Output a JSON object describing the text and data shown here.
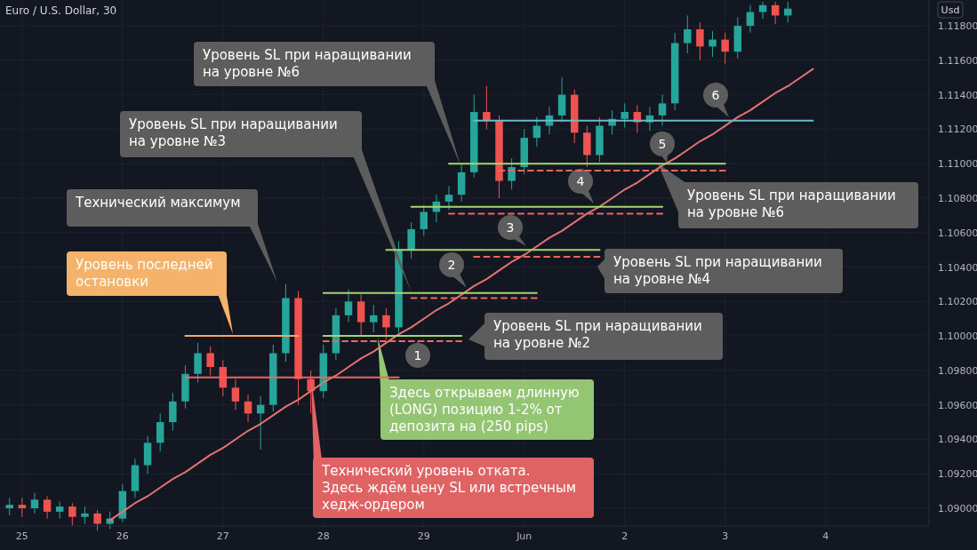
{
  "chart_data": {
    "type": "candlestick",
    "title": "Euro / U.S. Dollar, 30",
    "ylabel": "Usd",
    "categories": [
      null,
      "25",
      null,
      null,
      null,
      null,
      null,
      null,
      null,
      "26",
      null,
      null,
      null,
      null,
      null,
      null,
      null,
      "27",
      null,
      null,
      null,
      null,
      null,
      null,
      null,
      "28",
      null,
      null,
      null,
      null,
      null,
      null,
      null,
      "29",
      null,
      null,
      null,
      null,
      null,
      null,
      null,
      "Jun",
      null,
      null,
      null,
      null,
      null,
      null,
      null,
      "2",
      null,
      null,
      null,
      null,
      null,
      null,
      null,
      "3",
      null,
      null,
      null,
      null,
      null,
      null,
      null,
      "4",
      null,
      null,
      null,
      null,
      null,
      null,
      null,
      null
    ],
    "ohlc": [
      [
        1.09,
        1.0906,
        1.0896,
        1.0902
      ],
      [
        1.0902,
        1.0906,
        1.0895,
        1.09
      ],
      [
        1.09,
        1.0909,
        1.0897,
        1.0905
      ],
      [
        1.0905,
        1.0907,
        1.0894,
        1.0898
      ],
      [
        1.0898,
        1.0904,
        1.0894,
        1.0901
      ],
      [
        1.0901,
        1.0903,
        1.089,
        1.0895
      ],
      [
        1.0895,
        1.0901,
        1.0891,
        1.0897
      ],
      [
        1.0897,
        1.0899,
        1.0887,
        1.0891
      ],
      [
        1.0891,
        1.0898,
        1.0888,
        1.0894
      ],
      [
        1.0894,
        1.0914,
        1.0892,
        1.091
      ],
      [
        1.091,
        1.0929,
        1.0906,
        1.0925
      ],
      [
        1.0925,
        1.0942,
        1.092,
        1.0938
      ],
      [
        1.0938,
        1.0955,
        1.0933,
        1.095
      ],
      [
        1.095,
        1.0967,
        1.0945,
        1.0962
      ],
      [
        1.0962,
        1.0983,
        1.0958,
        1.0978
      ],
      [
        1.0978,
        1.0996,
        1.0973,
        1.099
      ],
      [
        1.099,
        1.0994,
        1.0977,
        1.0982
      ],
      [
        1.0982,
        1.0986,
        1.0965,
        1.097
      ],
      [
        1.097,
        1.0975,
        1.0957,
        1.0962
      ],
      [
        1.0962,
        1.0966,
        1.095,
        1.0955
      ],
      [
        1.0955,
        1.0965,
        1.0934,
        1.096
      ],
      [
        1.096,
        1.0995,
        1.0956,
        1.099
      ],
      [
        1.099,
        1.103,
        1.0985,
        1.1022
      ],
      [
        1.1022,
        1.1026,
        1.096,
        1.0975
      ],
      [
        1.0975,
        1.098,
        1.0955,
        1.0968
      ],
      [
        1.0968,
        1.0995,
        1.0964,
        1.099
      ],
      [
        1.099,
        1.1016,
        1.0986,
        1.1012
      ],
      [
        1.1012,
        1.1027,
        1.1008,
        1.102
      ],
      [
        1.102,
        1.1024,
        1.1,
        1.1008
      ],
      [
        1.1008,
        1.1018,
        1.1002,
        1.1012
      ],
      [
        1.1012,
        1.1016,
        1.0998,
        1.1005
      ],
      [
        1.1005,
        1.1055,
        1.1002,
        1.105
      ],
      [
        1.105,
        1.1066,
        1.1045,
        1.1062
      ],
      [
        1.1062,
        1.1076,
        1.1058,
        1.1072
      ],
      [
        1.1072,
        1.1082,
        1.1066,
        1.1078
      ],
      [
        1.1078,
        1.1087,
        1.1073,
        1.1082
      ],
      [
        1.1082,
        1.11,
        1.1078,
        1.1095
      ],
      [
        1.1095,
        1.114,
        1.1092,
        1.113
      ],
      [
        1.113,
        1.1145,
        1.112,
        1.1125
      ],
      [
        1.1125,
        1.1128,
        1.108,
        1.109
      ],
      [
        1.109,
        1.1103,
        1.1085,
        1.1098
      ],
      [
        1.1098,
        1.112,
        1.1094,
        1.1115
      ],
      [
        1.1115,
        1.1127,
        1.111,
        1.1122
      ],
      [
        1.1122,
        1.1133,
        1.1117,
        1.1128
      ],
      [
        1.1128,
        1.115,
        1.1124,
        1.114
      ],
      [
        1.114,
        1.1143,
        1.1112,
        1.1118
      ],
      [
        1.1118,
        1.1122,
        1.1098,
        1.1105
      ],
      [
        1.1105,
        1.1127,
        1.1101,
        1.1122
      ],
      [
        1.1122,
        1.1131,
        1.1117,
        1.1126
      ],
      [
        1.1126,
        1.1135,
        1.1121,
        1.113
      ],
      [
        1.113,
        1.1134,
        1.1118,
        1.1124
      ],
      [
        1.1124,
        1.1133,
        1.1119,
        1.1128
      ],
      [
        1.1128,
        1.114,
        1.1122,
        1.1135
      ],
      [
        1.1135,
        1.1176,
        1.1131,
        1.117
      ],
      [
        1.117,
        1.1186,
        1.1164,
        1.1178
      ],
      [
        1.1178,
        1.1182,
        1.116,
        1.1168
      ],
      [
        1.1168,
        1.1177,
        1.1162,
        1.1172
      ],
      [
        1.1172,
        1.1176,
        1.1158,
        1.1165
      ],
      [
        1.1165,
        1.1185,
        1.1161,
        1.118
      ],
      [
        1.118,
        1.1192,
        1.1176,
        1.1188
      ],
      [
        1.1188,
        1.1194,
        1.1184,
        1.1192
      ],
      [
        1.1192,
        1.1194,
        1.1181,
        1.1186
      ],
      [
        1.1186,
        1.1194,
        1.1182,
        1.119
      ],
      null,
      null,
      null,
      null,
      null,
      null,
      null,
      null,
      null,
      null,
      null
    ],
    "series": [
      {
        "type": "line",
        "color": "#e57373",
        "values": [
          null,
          null,
          null,
          null,
          null,
          null,
          null,
          null,
          1.0893,
          1.0898,
          1.0903,
          1.0907,
          1.0912,
          1.0917,
          1.0921,
          1.0926,
          1.0931,
          1.0935,
          1.094,
          1.0945,
          1.0949,
          1.0954,
          1.0959,
          1.0963,
          1.0968,
          1.0973,
          1.0977,
          1.0982,
          1.0987,
          1.0991,
          1.0996,
          1.1001,
          1.1005,
          1.101,
          1.1015,
          1.1019,
          1.1024,
          1.1029,
          1.1033,
          1.1038,
          1.1043,
          1.1047,
          1.1052,
          1.1057,
          1.1061,
          1.1066,
          1.1071,
          1.1075,
          1.108,
          1.1085,
          1.1089,
          1.1094,
          1.1099,
          1.1103,
          1.1108,
          1.1113,
          1.1117,
          1.1122,
          1.1127,
          1.1131,
          1.1136,
          1.1141,
          1.1145,
          1.115,
          1.1155,
          null,
          null,
          null,
          null,
          null,
          null,
          null,
          null,
          null
        ]
      },
      {
        "type": "line",
        "color": "#ffa564",
        "values": [
          null,
          null,
          null,
          null,
          null,
          null,
          null,
          null,
          null,
          null,
          null,
          null,
          null,
          null,
          1.1,
          1.1,
          1.1,
          1.1,
          1.1,
          1.1,
          1.1,
          1.1,
          1.1,
          1.1,
          null,
          null,
          null,
          null,
          null,
          null,
          null,
          null,
          null,
          null,
          null,
          null,
          null,
          null,
          null,
          null,
          null,
          null,
          null,
          null,
          null,
          null,
          null,
          null,
          null,
          null,
          null,
          null,
          null,
          null,
          null,
          null,
          null,
          null,
          null,
          null,
          null,
          null,
          null,
          null,
          null,
          null,
          null,
          null,
          null,
          null,
          null,
          null,
          null,
          null
        ]
      },
      {
        "type": "line",
        "color": "#f06464",
        "values": [
          null,
          null,
          null,
          null,
          null,
          null,
          null,
          null,
          null,
          null,
          null,
          null,
          null,
          null,
          1.0976,
          1.0976,
          1.0976,
          1.0976,
          1.0976,
          1.0976,
          1.0976,
          1.0976,
          1.0976,
          1.0976,
          1.0976,
          1.0976,
          1.0976,
          1.0976,
          1.0976,
          1.0976,
          1.0976,
          1.0976,
          null,
          null,
          null,
          null,
          null,
          null,
          null,
          null,
          null,
          null,
          null,
          null,
          null,
          null,
          null,
          null,
          null,
          null,
          null,
          null,
          null,
          null,
          null,
          null,
          null,
          null,
          null,
          null,
          null,
          null,
          null,
          null,
          null,
          null,
          null,
          null,
          null,
          null,
          null,
          null,
          null,
          null
        ]
      },
      {
        "type": "line",
        "color": "#a5d66f",
        "values": [
          null,
          null,
          null,
          null,
          null,
          null,
          null,
          null,
          null,
          null,
          null,
          null,
          null,
          null,
          null,
          null,
          null,
          null,
          null,
          null,
          null,
          null,
          null,
          null,
          null,
          1.1,
          1.1,
          1.1,
          1.1,
          1.1,
          1.1,
          1.1,
          1.1,
          1.1,
          1.1,
          1.1,
          1.1,
          null,
          null,
          null,
          null,
          null,
          null,
          null,
          null,
          null,
          null,
          null,
          null,
          null,
          null,
          null,
          null,
          null,
          null,
          null,
          null,
          null,
          null,
          null,
          null,
          null,
          null,
          null,
          null,
          null,
          null,
          null,
          null,
          null,
          null,
          null,
          null,
          null
        ]
      },
      {
        "type": "line",
        "color": "#f06464",
        "line_style": "dashed",
        "values": [
          null,
          null,
          null,
          null,
          null,
          null,
          null,
          null,
          null,
          null,
          null,
          null,
          null,
          null,
          null,
          null,
          null,
          null,
          null,
          null,
          null,
          null,
          null,
          null,
          null,
          1.0997,
          1.0997,
          1.0997,
          1.0997,
          1.0997,
          1.0997,
          1.0997,
          1.0997,
          1.0997,
          1.0997,
          1.0997,
          1.0997,
          null,
          null,
          null,
          null,
          null,
          null,
          null,
          null,
          null,
          null,
          null,
          null,
          null,
          null,
          null,
          null,
          null,
          null,
          null,
          null,
          null,
          null,
          null,
          null,
          null,
          null,
          null,
          null,
          null,
          null,
          null,
          null,
          null,
          null,
          null,
          null,
          null
        ]
      },
      {
        "type": "line",
        "color": "#a5d66f",
        "values": [
          null,
          null,
          null,
          null,
          null,
          null,
          null,
          null,
          null,
          null,
          null,
          null,
          null,
          null,
          null,
          null,
          null,
          null,
          null,
          null,
          null,
          null,
          null,
          null,
          null,
          1.1025,
          1.1025,
          1.1025,
          1.1025,
          1.1025,
          1.1025,
          1.1025,
          1.1025,
          1.1025,
          1.1025,
          1.1025,
          1.1025,
          1.1025,
          1.1025,
          1.1025,
          1.1025,
          1.1025,
          1.1025,
          null,
          null,
          null,
          null,
          null,
          null,
          null,
          null,
          null,
          null,
          null,
          null,
          null,
          null,
          null,
          null,
          null,
          null,
          null,
          null,
          null,
          null,
          null,
          null,
          null,
          null,
          null,
          null,
          null,
          null,
          null
        ]
      },
      {
        "type": "line",
        "color": "#f06464",
        "line_style": "dashed",
        "values": [
          null,
          null,
          null,
          null,
          null,
          null,
          null,
          null,
          null,
          null,
          null,
          null,
          null,
          null,
          null,
          null,
          null,
          null,
          null,
          null,
          null,
          null,
          null,
          null,
          null,
          null,
          null,
          null,
          null,
          null,
          null,
          null,
          1.1022,
          1.1022,
          1.1022,
          1.1022,
          1.1022,
          1.1022,
          1.1022,
          1.1022,
          1.1022,
          1.1022,
          1.1022,
          null,
          null,
          null,
          null,
          null,
          null,
          null,
          null,
          null,
          null,
          null,
          null,
          null,
          null,
          null,
          null,
          null,
          null,
          null,
          null,
          null,
          null,
          null,
          null,
          null,
          null,
          null,
          null,
          null,
          null,
          null
        ]
      },
      {
        "type": "line",
        "color": "#a5d66f",
        "values": [
          null,
          null,
          null,
          null,
          null,
          null,
          null,
          null,
          null,
          null,
          null,
          null,
          null,
          null,
          null,
          null,
          null,
          null,
          null,
          null,
          null,
          null,
          null,
          null,
          null,
          null,
          null,
          null,
          null,
          null,
          1.105,
          1.105,
          1.105,
          1.105,
          1.105,
          1.105,
          1.105,
          1.105,
          1.105,
          1.105,
          1.105,
          1.105,
          1.105,
          1.105,
          1.105,
          1.105,
          1.105,
          1.105,
          null,
          null,
          null,
          null,
          null,
          null,
          null,
          null,
          null,
          null,
          null,
          null,
          null,
          null,
          null,
          null,
          null,
          null,
          null,
          null,
          null,
          null,
          null,
          null,
          null,
          null
        ]
      },
      {
        "type": "line",
        "color": "#f06464",
        "line_style": "dashed",
        "values": [
          null,
          null,
          null,
          null,
          null,
          null,
          null,
          null,
          null,
          null,
          null,
          null,
          null,
          null,
          null,
          null,
          null,
          null,
          null,
          null,
          null,
          null,
          null,
          null,
          null,
          null,
          null,
          null,
          null,
          null,
          null,
          null,
          null,
          null,
          null,
          null,
          null,
          1.1046,
          1.1046,
          1.1046,
          1.1046,
          1.1046,
          1.1046,
          1.1046,
          1.1046,
          1.1046,
          1.1046,
          1.1046,
          null,
          null,
          null,
          null,
          null,
          null,
          null,
          null,
          null,
          null,
          null,
          null,
          null,
          null,
          null,
          null,
          null,
          null,
          null,
          null,
          null,
          null,
          null,
          null,
          null,
          null
        ]
      },
      {
        "type": "line",
        "color": "#a5d66f",
        "values": [
          null,
          null,
          null,
          null,
          null,
          null,
          null,
          null,
          null,
          null,
          null,
          null,
          null,
          null,
          null,
          null,
          null,
          null,
          null,
          null,
          null,
          null,
          null,
          null,
          null,
          null,
          null,
          null,
          null,
          null,
          null,
          null,
          1.1075,
          1.1075,
          1.1075,
          1.1075,
          1.1075,
          1.1075,
          1.1075,
          1.1075,
          1.1075,
          1.1075,
          1.1075,
          1.1075,
          1.1075,
          1.1075,
          1.1075,
          1.1075,
          1.1075,
          1.1075,
          1.1075,
          1.1075,
          1.1075,
          null,
          null,
          null,
          null,
          null,
          null,
          null,
          null,
          null,
          null,
          null,
          null,
          null,
          null,
          null,
          null,
          null,
          null,
          null,
          null,
          null
        ]
      },
      {
        "type": "line",
        "color": "#f06464",
        "line_style": "dashed",
        "values": [
          null,
          null,
          null,
          null,
          null,
          null,
          null,
          null,
          null,
          null,
          null,
          null,
          null,
          null,
          null,
          null,
          null,
          null,
          null,
          null,
          null,
          null,
          null,
          null,
          null,
          null,
          null,
          null,
          null,
          null,
          null,
          null,
          null,
          null,
          null,
          1.1071,
          1.1071,
          1.1071,
          1.1071,
          1.1071,
          1.1071,
          1.1071,
          1.1071,
          1.1071,
          1.1071,
          1.1071,
          1.1071,
          1.1071,
          1.1071,
          1.1071,
          1.1071,
          1.1071,
          1.1071,
          null,
          null,
          null,
          null,
          null,
          null,
          null,
          null,
          null,
          null,
          null,
          null,
          null,
          null,
          null,
          null,
          null,
          null,
          null,
          null,
          null
        ]
      },
      {
        "type": "line",
        "color": "#a5d66f",
        "values": [
          null,
          null,
          null,
          null,
          null,
          null,
          null,
          null,
          null,
          null,
          null,
          null,
          null,
          null,
          null,
          null,
          null,
          null,
          null,
          null,
          null,
          null,
          null,
          null,
          null,
          null,
          null,
          null,
          null,
          null,
          null,
          null,
          null,
          null,
          null,
          1.11,
          1.11,
          1.11,
          1.11,
          1.11,
          1.11,
          1.11,
          1.11,
          1.11,
          1.11,
          1.11,
          1.11,
          1.11,
          1.11,
          1.11,
          1.11,
          1.11,
          1.11,
          1.11,
          1.11,
          1.11,
          1.11,
          1.11,
          null,
          null,
          null,
          null,
          null,
          null,
          null,
          null,
          null,
          null,
          null,
          null,
          null,
          null,
          null,
          null
        ]
      },
      {
        "type": "line",
        "color": "#f06464",
        "line_style": "dashed",
        "values": [
          null,
          null,
          null,
          null,
          null,
          null,
          null,
          null,
          null,
          null,
          null,
          null,
          null,
          null,
          null,
          null,
          null,
          null,
          null,
          null,
          null,
          null,
          null,
          null,
          null,
          null,
          null,
          null,
          null,
          null,
          null,
          null,
          null,
          null,
          null,
          null,
          null,
          null,
          null,
          1.1096,
          1.1096,
          1.1096,
          1.1096,
          1.1096,
          1.1096,
          1.1096,
          1.1096,
          1.1096,
          1.1096,
          1.1096,
          1.1096,
          1.1096,
          1.1096,
          1.1096,
          1.1096,
          1.1096,
          1.1096,
          1.1096,
          null,
          null,
          null,
          null,
          null,
          null,
          null,
          null,
          null,
          null,
          null,
          null,
          null,
          null,
          null,
          null
        ]
      },
      {
        "type": "line",
        "color": "#6fb8c8",
        "values": [
          null,
          null,
          null,
          null,
          null,
          null,
          null,
          null,
          null,
          null,
          null,
          null,
          null,
          null,
          null,
          null,
          null,
          null,
          null,
          null,
          null,
          null,
          null,
          null,
          null,
          null,
          null,
          null,
          null,
          null,
          null,
          null,
          null,
          null,
          null,
          null,
          null,
          1.1125,
          1.1125,
          1.1125,
          1.1125,
          1.1125,
          1.1125,
          1.1125,
          1.1125,
          1.1125,
          1.1125,
          1.1125,
          1.1125,
          1.1125,
          1.1125,
          1.1125,
          1.1125,
          1.1125,
          1.1125,
          1.1125,
          1.1125,
          1.1125,
          1.1125,
          1.1125,
          1.1125,
          1.1125,
          1.1125,
          1.1125,
          1.1125,
          null,
          null,
          null,
          null,
          null,
          null,
          null,
          null,
          null
        ]
      }
    ],
    "ylim": [
      1.08897,
      1.1195
    ],
    "yticks": [
      {
        "value": 1.09,
        "label": "1.09000"
      },
      {
        "value": 1.092,
        "label": "1.09200"
      },
      {
        "value": 1.094,
        "label": "1.09400"
      },
      {
        "value": 1.096,
        "label": "1.09600"
      },
      {
        "value": 1.098,
        "label": "1.09800"
      },
      {
        "value": 1.1,
        "label": "1.10000"
      },
      {
        "value": 1.102,
        "label": "1.10200"
      },
      {
        "value": 1.104,
        "label": "1.10400"
      },
      {
        "value": 1.106,
        "label": "1.10600"
      },
      {
        "value": 1.108,
        "label": "1.10800"
      },
      {
        "value": 1.11,
        "label": "1.11000"
      },
      {
        "value": 1.112,
        "label": "1.11200"
      },
      {
        "value": 1.114,
        "label": "1.11400"
      },
      {
        "value": 1.116,
        "label": "1.11600"
      },
      {
        "value": 1.118,
        "label": "1.11800"
      }
    ],
    "grid": true,
    "annotations": [
      "Технический максимум",
      "Уровень последней\nостановки",
      "Уровень SL при наращивании\nна уровне №3",
      "Уровень SL при наращивании\nна уровне №6",
      "Уровень SL при наращивании\nна уровне №6",
      "Уровень SL при наращивании\nна уровне №4",
      "Уровень SL при наращивании\nна уровне №2",
      "Здесь открываем длинную\n(LONG) позицию 1-2% от\nдепозита на (250 pips)",
      "Технический уровень отката.\nЗдесь ждём цену SL или встречным\nхедж-ордером",
      "1",
      "2",
      "3",
      "4",
      "5",
      "6"
    ]
  }
}
